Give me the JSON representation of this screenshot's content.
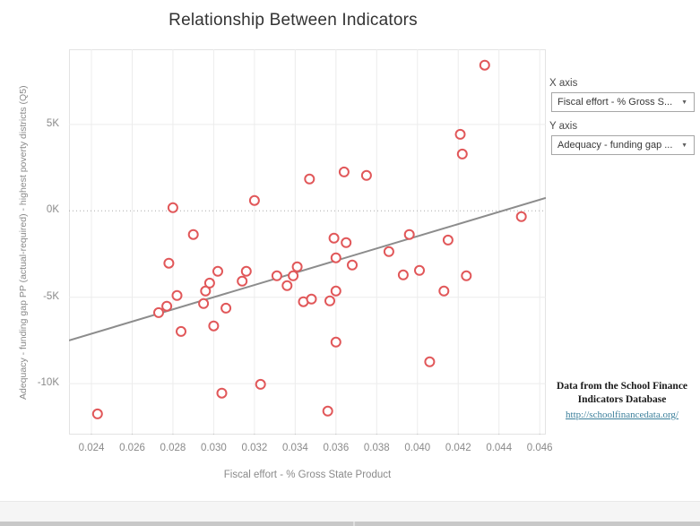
{
  "page_title": "Relationship Between Indicators",
  "chart_data": {
    "type": "scatter",
    "title": "Relationship Between Indicators",
    "xlabel": "Fiscal effort - % Gross State Product",
    "ylabel": "Adequacy - funding gap PP (actual-required) - highest poverty districts (Q5)",
    "xlim": [
      0.0229,
      0.0463
    ],
    "ylim": [
      -12950,
      9350
    ],
    "x_ticks": [
      0.024,
      0.026,
      0.028,
      0.03,
      0.032,
      0.034,
      0.036,
      0.038,
      0.04,
      0.042,
      0.044,
      0.046
    ],
    "x_tick_labels": [
      "0.024",
      "0.026",
      "0.028",
      "0.030",
      "0.032",
      "0.034",
      "0.036",
      "0.038",
      "0.040",
      "0.042",
      "0.044",
      "0.046"
    ],
    "y_ticks": [
      5000,
      0,
      -5000,
      -10000
    ],
    "y_tick_labels": [
      "5K",
      "0K",
      "-5K",
      "-10K"
    ],
    "grid": true,
    "zero_line": "dotted",
    "legend": "none",
    "marker": {
      "shape": "open-circle",
      "color": "#e15759",
      "radius": 5,
      "stroke_width": 2
    },
    "trend_line": {
      "x1": 0.0229,
      "y1": -7500,
      "x2": 0.0463,
      "y2": 750,
      "color": "#8c8c8c"
    },
    "points": [
      [
        0.0243,
        -11750
      ],
      [
        0.0273,
        -5890
      ],
      [
        0.0277,
        -5520
      ],
      [
        0.0278,
        -3030
      ],
      [
        0.028,
        180
      ],
      [
        0.0282,
        -4900
      ],
      [
        0.0284,
        -6980
      ],
      [
        0.029,
        -1370
      ],
      [
        0.0295,
        -5370
      ],
      [
        0.0296,
        -4640
      ],
      [
        0.0298,
        -4180
      ],
      [
        0.03,
        -6660
      ],
      [
        0.0302,
        -3500
      ],
      [
        0.0304,
        -10550
      ],
      [
        0.0306,
        -5630
      ],
      [
        0.0314,
        -4070
      ],
      [
        0.0316,
        -3500
      ],
      [
        0.032,
        600
      ],
      [
        0.0323,
        -10040
      ],
      [
        0.0331,
        -3760
      ],
      [
        0.0336,
        -4330
      ],
      [
        0.0339,
        -3760
      ],
      [
        0.0341,
        -3240
      ],
      [
        0.0344,
        -5260
      ],
      [
        0.0347,
        1840
      ],
      [
        0.0348,
        -5110
      ],
      [
        0.0356,
        -11590
      ],
      [
        0.0357,
        -5210
      ],
      [
        0.0359,
        -1580
      ],
      [
        0.036,
        -2720
      ],
      [
        0.036,
        -4640
      ],
      [
        0.036,
        -7600
      ],
      [
        0.0364,
        2250
      ],
      [
        0.0365,
        -1840
      ],
      [
        0.0368,
        -3140
      ],
      [
        0.0375,
        2050
      ],
      [
        0.0386,
        -2360
      ],
      [
        0.0393,
        -3710
      ],
      [
        0.0396,
        -1370
      ],
      [
        0.0401,
        -3450
      ],
      [
        0.0406,
        -8740
      ],
      [
        0.0413,
        -4640
      ],
      [
        0.0415,
        -1690
      ],
      [
        0.0421,
        4430
      ],
      [
        0.0422,
        3290
      ],
      [
        0.0424,
        -3760
      ],
      [
        0.0433,
        8430
      ],
      [
        0.0451,
        -340
      ]
    ]
  },
  "controls": {
    "x_axis": {
      "label": "X axis",
      "value": "Fiscal effort - % Gross S...",
      "icon": "chevron-down"
    },
    "y_axis": {
      "label": "Y axis",
      "value": "Adequacy - funding gap ...",
      "icon": "chevron-down"
    }
  },
  "annotation": {
    "line1": "Data from the School Finance",
    "line2": "Indicators Database",
    "link": "http://schoolfinancedata.org/"
  },
  "colors": {
    "marker": "#e15759",
    "trend_line": "#8c8c8c",
    "grid": "#ececec",
    "zero_line": "#aaaaaa",
    "tick": "#c0c0c0",
    "axis_text": "#8a8a8a",
    "title_text": "#333333",
    "link": "#3b7f9b"
  }
}
